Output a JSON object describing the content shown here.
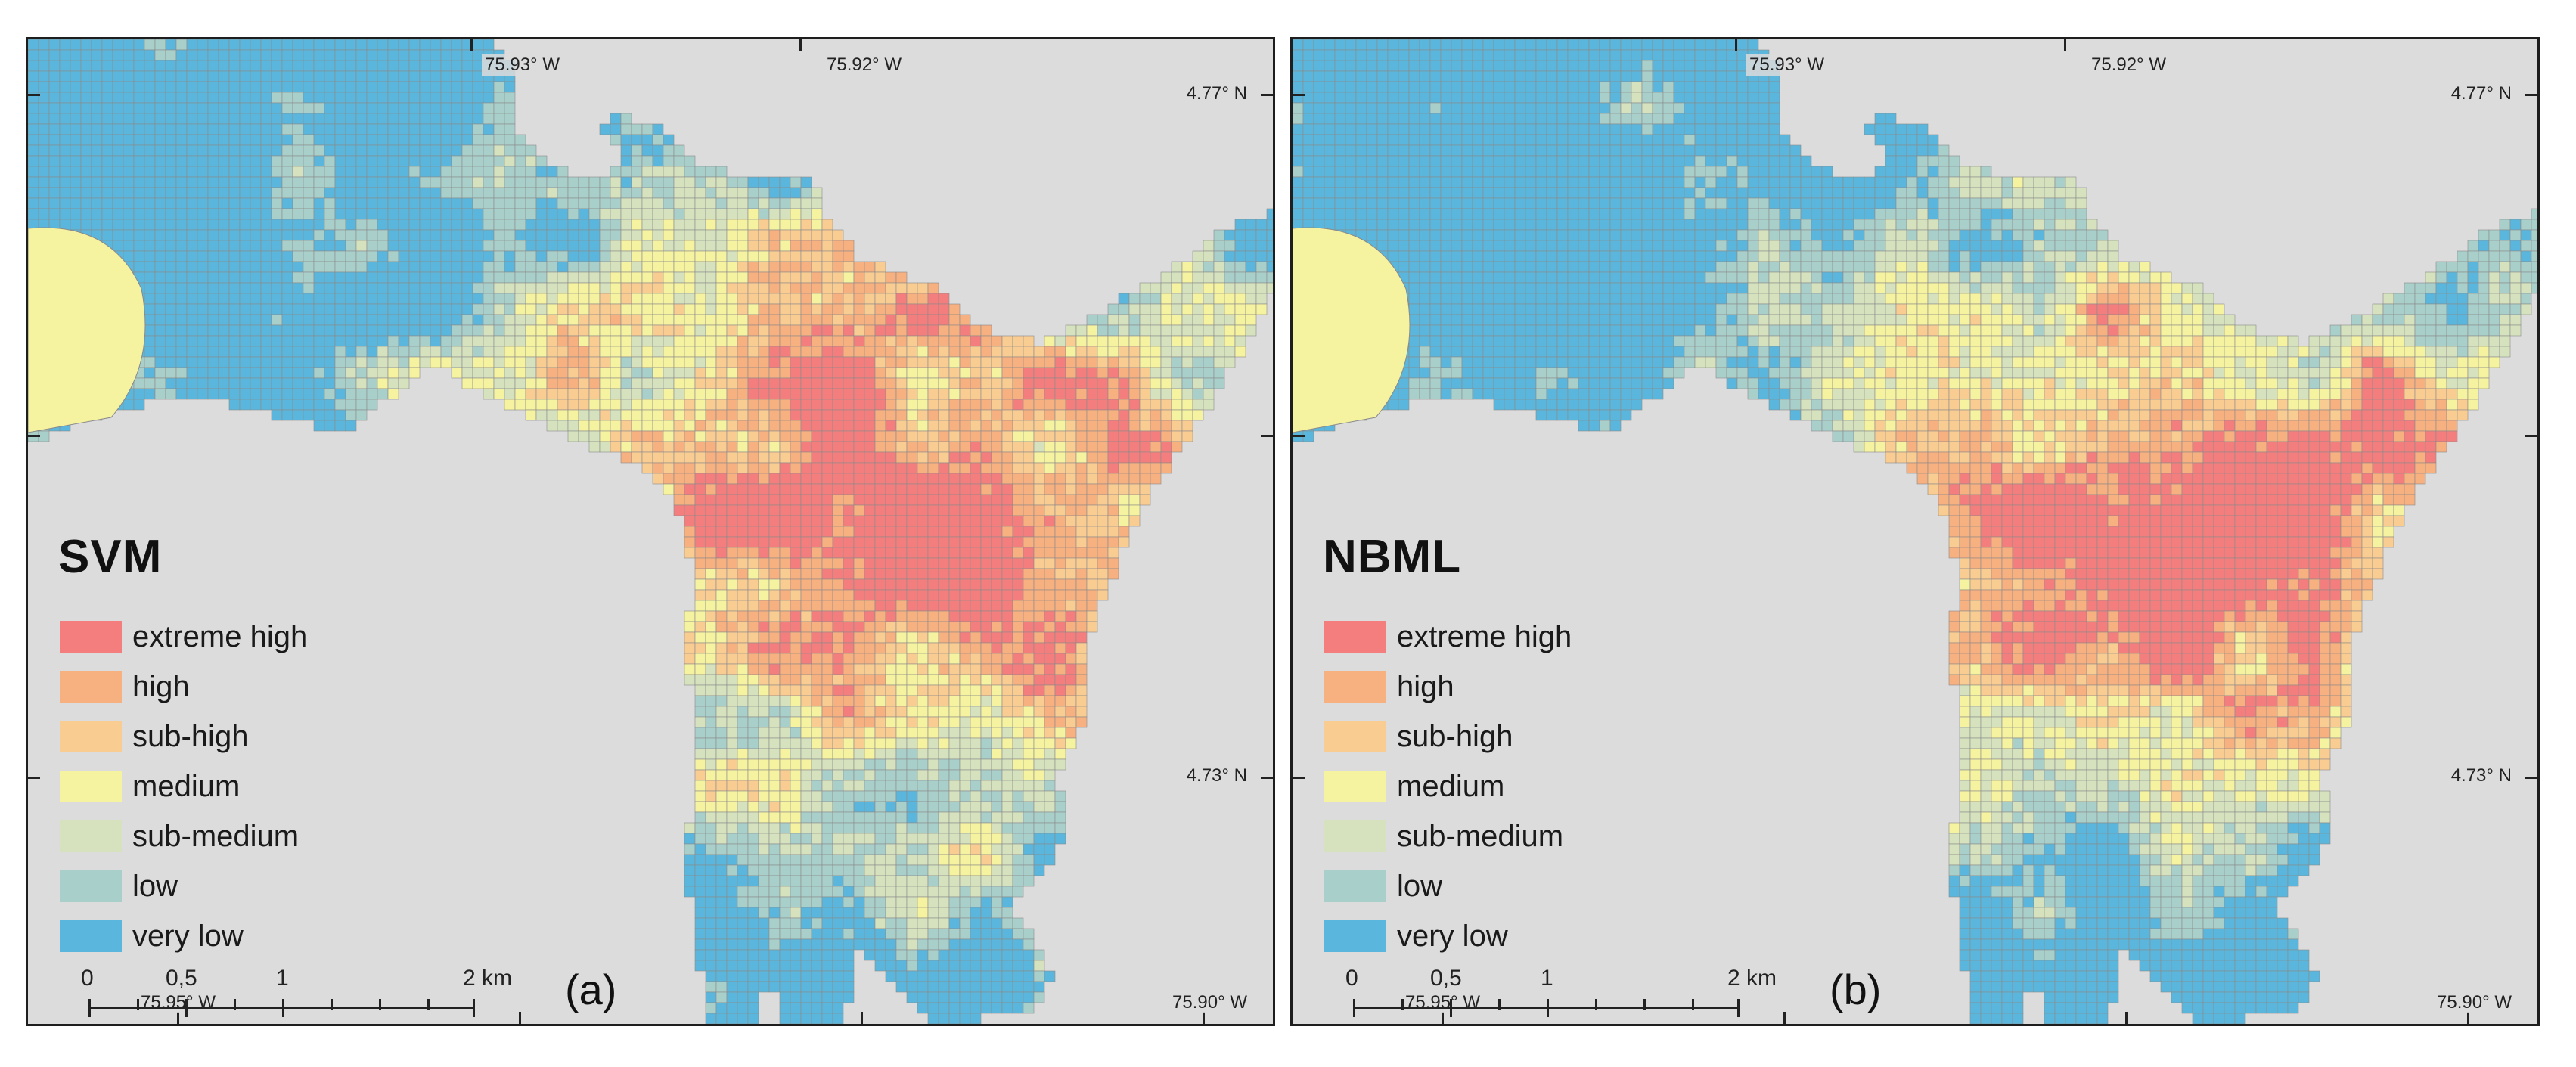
{
  "panels": [
    {
      "id": "a",
      "model": "SVM",
      "label": "(a)",
      "coords": {
        "top_lon_1": "75.93° W",
        "top_lon_2": "75.92° W",
        "right_lat_1": "4.77° N",
        "right_lat_2": "4.73° N",
        "bottom_lon_1": "75.95° W",
        "bottom_lon_2": "75.90° W"
      },
      "scale": {
        "ticks": [
          "0",
          "0,5",
          "1",
          "2 km"
        ]
      }
    },
    {
      "id": "b",
      "model": "NBML",
      "label": "(b)",
      "coords": {
        "top_lon_1": "75.93° W",
        "top_lon_2": "75.92° W",
        "right_lat_1": "4.77° N",
        "right_lat_2": "4.73° N",
        "bottom_lon_1": "75.95° W",
        "bottom_lon_2": "75.90° W"
      },
      "scale": {
        "ticks": [
          "0",
          "0,5",
          "1",
          "2 km"
        ]
      }
    }
  ],
  "legend": [
    {
      "label": "extreme high",
      "color": "#f47e7e"
    },
    {
      "label": "high",
      "color": "#f7b080"
    },
    {
      "label": "sub-high",
      "color": "#f9cc92"
    },
    {
      "label": "medium",
      "color": "#f5f2a0"
    },
    {
      "label": "sub-medium",
      "color": "#d5e2bd"
    },
    {
      "label": "low",
      "color": "#a9cfca"
    },
    {
      "label": "very low",
      "color": "#5ab6dc"
    }
  ],
  "background_color": "#dcdcdc"
}
